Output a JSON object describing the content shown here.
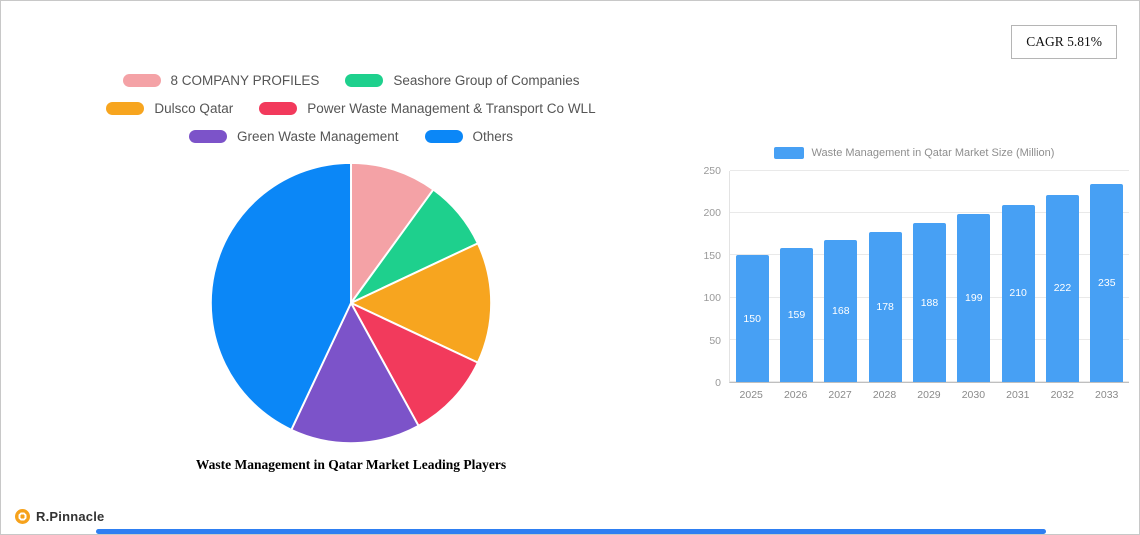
{
  "cagr_badge": {
    "label": "CAGR 5.81%"
  },
  "chart_data": [
    {
      "type": "pie",
      "title": "Waste Management in Qatar Market Leading Players",
      "labels": [
        "8  COMPANY PROFILES",
        "Seashore Group of Companies",
        "Dulsco Qatar",
        "Power Waste Management & Transport Co  WLL",
        "Green Waste Management",
        "Others"
      ],
      "values": [
        10,
        8,
        14,
        10,
        15,
        43
      ],
      "colors": [
        "#f4a2a6",
        "#1ed08d",
        "#f7a51f",
        "#f23a5c",
        "#7c53c9",
        "#0b87f7"
      ],
      "legend_position": "top"
    },
    {
      "type": "bar",
      "legend": "Waste Management in Qatar Market Size (Million)",
      "categories": [
        "2025",
        "2026",
        "2027",
        "2028",
        "2029",
        "2030",
        "2031",
        "2032",
        "2033"
      ],
      "values": [
        150,
        159,
        168,
        178,
        188,
        199,
        210,
        222,
        235
      ],
      "ylim": [
        0,
        250
      ],
      "yticks": [
        0,
        50,
        100,
        150,
        200,
        250
      ],
      "bar_color": "#47a0f4",
      "grid": true,
      "xlabel": "",
      "ylabel": ""
    }
  ],
  "footer": {
    "brand": "R.Pinnacle",
    "brand_color": "#f6a21c"
  },
  "scrollbar": {
    "color": "#2e7ff2"
  }
}
